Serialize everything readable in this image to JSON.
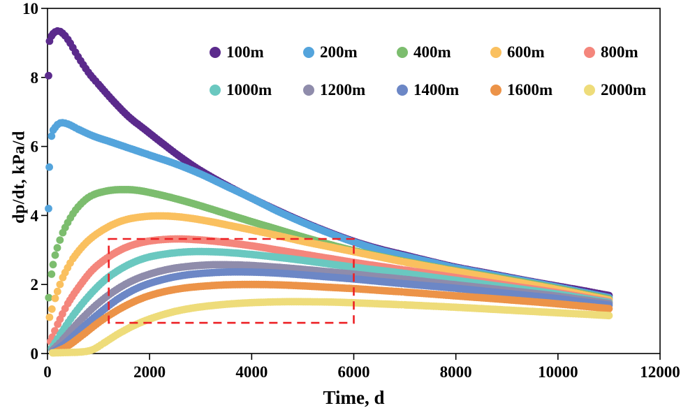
{
  "chart_data": {
    "type": "scatter",
    "title": "",
    "xlabel": "Time, d",
    "ylabel": "dp/dt, kPa/d",
    "xlim": [
      0,
      12000
    ],
    "ylim": [
      0,
      10
    ],
    "xticks": [
      0,
      2000,
      4000,
      6000,
      8000,
      10000,
      12000
    ],
    "yticks": [
      0,
      2,
      4,
      6,
      8,
      10
    ],
    "grid": false,
    "legend_position": "top-center",
    "legend_rows": [
      [
        "100m",
        "200m",
        "400m",
        "600m",
        "800m"
      ],
      [
        "1000m",
        "1200m",
        "1400m",
        "1600m",
        "2000m"
      ]
    ],
    "annotation_box": {
      "x0": 1200,
      "x1": 6000,
      "y0": 0.89,
      "y1": 3.32,
      "color": "#ed2024",
      "style": "dashed"
    },
    "series": [
      {
        "name": "100m",
        "color": "#5b2a8c",
        "points": [
          [
            20,
            8.05
          ],
          [
            40,
            9.05
          ],
          [
            80,
            9.2
          ],
          [
            150,
            9.32
          ],
          [
            250,
            9.33
          ],
          [
            400,
            9.1
          ],
          [
            600,
            8.6
          ],
          [
            800,
            8.15
          ],
          [
            1000,
            7.8
          ],
          [
            1300,
            7.3
          ],
          [
            1600,
            6.85
          ],
          [
            1900,
            6.5
          ],
          [
            2200,
            6.15
          ],
          [
            2600,
            5.7
          ],
          [
            3000,
            5.3
          ],
          [
            3500,
            4.88
          ],
          [
            4000,
            4.5
          ],
          [
            4500,
            4.15
          ],
          [
            5000,
            3.82
          ],
          [
            5500,
            3.52
          ],
          [
            6000,
            3.25
          ],
          [
            6500,
            3.03
          ],
          [
            7000,
            2.85
          ],
          [
            7500,
            2.67
          ],
          [
            8000,
            2.5
          ],
          [
            8500,
            2.36
          ],
          [
            9000,
            2.22
          ],
          [
            9500,
            2.08
          ],
          [
            10000,
            1.95
          ],
          [
            10500,
            1.82
          ],
          [
            11000,
            1.68
          ]
        ]
      },
      {
        "name": "200m",
        "color": "#54a4dc",
        "points": [
          [
            20,
            4.2
          ],
          [
            35,
            5.4
          ],
          [
            80,
            6.3
          ],
          [
            150,
            6.55
          ],
          [
            250,
            6.68
          ],
          [
            400,
            6.65
          ],
          [
            600,
            6.5
          ],
          [
            900,
            6.3
          ],
          [
            1200,
            6.15
          ],
          [
            1600,
            5.95
          ],
          [
            2000,
            5.75
          ],
          [
            2500,
            5.5
          ],
          [
            3000,
            5.2
          ],
          [
            3500,
            4.85
          ],
          [
            4000,
            4.5
          ],
          [
            4500,
            4.13
          ],
          [
            5000,
            3.8
          ],
          [
            5500,
            3.5
          ],
          [
            6000,
            3.23
          ],
          [
            6500,
            3.0
          ],
          [
            7000,
            2.82
          ],
          [
            7500,
            2.65
          ],
          [
            8000,
            2.48
          ],
          [
            9000,
            2.2
          ],
          [
            10000,
            1.92
          ],
          [
            11000,
            1.62
          ]
        ]
      },
      {
        "name": "400m",
        "color": "#7cbd6e",
        "points": [
          [
            25,
            1.62
          ],
          [
            80,
            2.3
          ],
          [
            150,
            2.85
          ],
          [
            300,
            3.5
          ],
          [
            500,
            4.05
          ],
          [
            700,
            4.4
          ],
          [
            900,
            4.6
          ],
          [
            1200,
            4.72
          ],
          [
            1500,
            4.75
          ],
          [
            1800,
            4.72
          ],
          [
            2200,
            4.6
          ],
          [
            2600,
            4.45
          ],
          [
            3000,
            4.28
          ],
          [
            3500,
            4.05
          ],
          [
            4000,
            3.82
          ],
          [
            4500,
            3.6
          ],
          [
            5000,
            3.38
          ],
          [
            5500,
            3.17
          ],
          [
            6000,
            2.98
          ],
          [
            6500,
            2.82
          ],
          [
            7000,
            2.67
          ],
          [
            8000,
            2.4
          ],
          [
            9000,
            2.15
          ],
          [
            10000,
            1.88
          ],
          [
            11000,
            1.58
          ]
        ]
      },
      {
        "name": "600m",
        "color": "#fac05f",
        "points": [
          [
            40,
            1.05
          ],
          [
            150,
            1.6
          ],
          [
            300,
            2.2
          ],
          [
            500,
            2.75
          ],
          [
            750,
            3.2
          ],
          [
            1000,
            3.5
          ],
          [
            1300,
            3.75
          ],
          [
            1600,
            3.9
          ],
          [
            2000,
            3.98
          ],
          [
            2400,
            3.98
          ],
          [
            2800,
            3.92
          ],
          [
            3200,
            3.82
          ],
          [
            3600,
            3.7
          ],
          [
            4000,
            3.58
          ],
          [
            4500,
            3.42
          ],
          [
            5000,
            3.25
          ],
          [
            5500,
            3.1
          ],
          [
            6000,
            2.95
          ],
          [
            6500,
            2.8
          ],
          [
            7000,
            2.65
          ],
          [
            8000,
            2.38
          ],
          [
            9000,
            2.12
          ],
          [
            10000,
            1.85
          ],
          [
            11000,
            1.55
          ]
        ]
      },
      {
        "name": "800m",
        "color": "#f4867c",
        "points": [
          [
            60,
            0.35
          ],
          [
            200,
            0.85
          ],
          [
            400,
            1.45
          ],
          [
            650,
            2.0
          ],
          [
            900,
            2.45
          ],
          [
            1200,
            2.8
          ],
          [
            1500,
            3.05
          ],
          [
            1800,
            3.2
          ],
          [
            2100,
            3.28
          ],
          [
            2500,
            3.32
          ],
          [
            2900,
            3.3
          ],
          [
            3300,
            3.25
          ],
          [
            3700,
            3.18
          ],
          [
            4100,
            3.1
          ],
          [
            4500,
            3.0
          ],
          [
            5000,
            2.88
          ],
          [
            5500,
            2.76
          ],
          [
            6000,
            2.64
          ],
          [
            6500,
            2.53
          ],
          [
            7000,
            2.42
          ],
          [
            8000,
            2.2
          ],
          [
            9000,
            1.98
          ],
          [
            10000,
            1.76
          ],
          [
            11000,
            1.5
          ]
        ]
      },
      {
        "name": "1000m",
        "color": "#6ac8c0",
        "points": [
          [
            80,
            0.15
          ],
          [
            250,
            0.55
          ],
          [
            500,
            1.1
          ],
          [
            800,
            1.65
          ],
          [
            1100,
            2.1
          ],
          [
            1400,
            2.42
          ],
          [
            1700,
            2.65
          ],
          [
            2000,
            2.8
          ],
          [
            2400,
            2.9
          ],
          [
            2800,
            2.95
          ],
          [
            3200,
            2.95
          ],
          [
            3600,
            2.92
          ],
          [
            4000,
            2.87
          ],
          [
            4500,
            2.79
          ],
          [
            5000,
            2.7
          ],
          [
            5500,
            2.6
          ],
          [
            6000,
            2.5
          ],
          [
            6500,
            2.41
          ],
          [
            7000,
            2.32
          ],
          [
            8000,
            2.12
          ],
          [
            9000,
            1.92
          ],
          [
            10000,
            1.72
          ],
          [
            11000,
            1.48
          ]
        ]
      },
      {
        "name": "1200m",
        "color": "#8f8cab",
        "points": [
          [
            100,
            0.1
          ],
          [
            300,
            0.4
          ],
          [
            600,
            0.9
          ],
          [
            950,
            1.4
          ],
          [
            1300,
            1.8
          ],
          [
            1650,
            2.1
          ],
          [
            2000,
            2.3
          ],
          [
            2400,
            2.45
          ],
          [
            2800,
            2.53
          ],
          [
            3200,
            2.57
          ],
          [
            3600,
            2.57
          ],
          [
            4000,
            2.55
          ],
          [
            4500,
            2.5
          ],
          [
            5000,
            2.44
          ],
          [
            5500,
            2.37
          ],
          [
            6000,
            2.3
          ],
          [
            6500,
            2.22
          ],
          [
            7000,
            2.15
          ],
          [
            8000,
            1.99
          ],
          [
            9000,
            1.83
          ],
          [
            10000,
            1.66
          ],
          [
            11000,
            1.45
          ]
        ]
      },
      {
        "name": "1400m",
        "color": "#6c87c6",
        "points": [
          [
            130,
            0.07
          ],
          [
            350,
            0.3
          ],
          [
            650,
            0.7
          ],
          [
            1000,
            1.15
          ],
          [
            1400,
            1.6
          ],
          [
            1800,
            1.92
          ],
          [
            2200,
            2.12
          ],
          [
            2600,
            2.25
          ],
          [
            3000,
            2.32
          ],
          [
            3500,
            2.36
          ],
          [
            4000,
            2.36
          ],
          [
            4500,
            2.33
          ],
          [
            5000,
            2.28
          ],
          [
            5500,
            2.22
          ],
          [
            6000,
            2.16
          ],
          [
            6500,
            2.09
          ],
          [
            7000,
            2.02
          ],
          [
            8000,
            1.89
          ],
          [
            9000,
            1.74
          ],
          [
            10000,
            1.59
          ],
          [
            11000,
            1.4
          ]
        ]
      },
      {
        "name": "1600m",
        "color": "#ec9348",
        "points": [
          [
            170,
            0.05
          ],
          [
            400,
            0.22
          ],
          [
            700,
            0.55
          ],
          [
            1050,
            0.95
          ],
          [
            1450,
            1.32
          ],
          [
            1850,
            1.6
          ],
          [
            2250,
            1.78
          ],
          [
            2650,
            1.89
          ],
          [
            3050,
            1.95
          ],
          [
            3500,
            1.99
          ],
          [
            4000,
            2.0
          ],
          [
            4500,
            1.99
          ],
          [
            5000,
            1.96
          ],
          [
            5500,
            1.92
          ],
          [
            6000,
            1.88
          ],
          [
            6500,
            1.83
          ],
          [
            7000,
            1.78
          ],
          [
            8000,
            1.67
          ],
          [
            9000,
            1.56
          ],
          [
            10000,
            1.44
          ],
          [
            11000,
            1.3
          ]
        ]
      },
      {
        "name": "2000m",
        "color": "#eedc7a",
        "points": [
          [
            100,
            0.02
          ],
          [
            400,
            0.03
          ],
          [
            700,
            0.05
          ],
          [
            900,
            0.12
          ],
          [
            1100,
            0.3
          ],
          [
            1400,
            0.58
          ],
          [
            1750,
            0.85
          ],
          [
            2100,
            1.05
          ],
          [
            2500,
            1.22
          ],
          [
            2900,
            1.33
          ],
          [
            3300,
            1.4
          ],
          [
            3700,
            1.45
          ],
          [
            4100,
            1.48
          ],
          [
            4600,
            1.5
          ],
          [
            5100,
            1.5
          ],
          [
            5600,
            1.49
          ],
          [
            6000,
            1.47
          ],
          [
            6500,
            1.44
          ],
          [
            7000,
            1.41
          ],
          [
            8000,
            1.34
          ],
          [
            9000,
            1.26
          ],
          [
            10000,
            1.18
          ],
          [
            11000,
            1.1
          ]
        ]
      }
    ]
  },
  "axis": {
    "tick_color": "#000000",
    "frame_color": "#000000"
  }
}
